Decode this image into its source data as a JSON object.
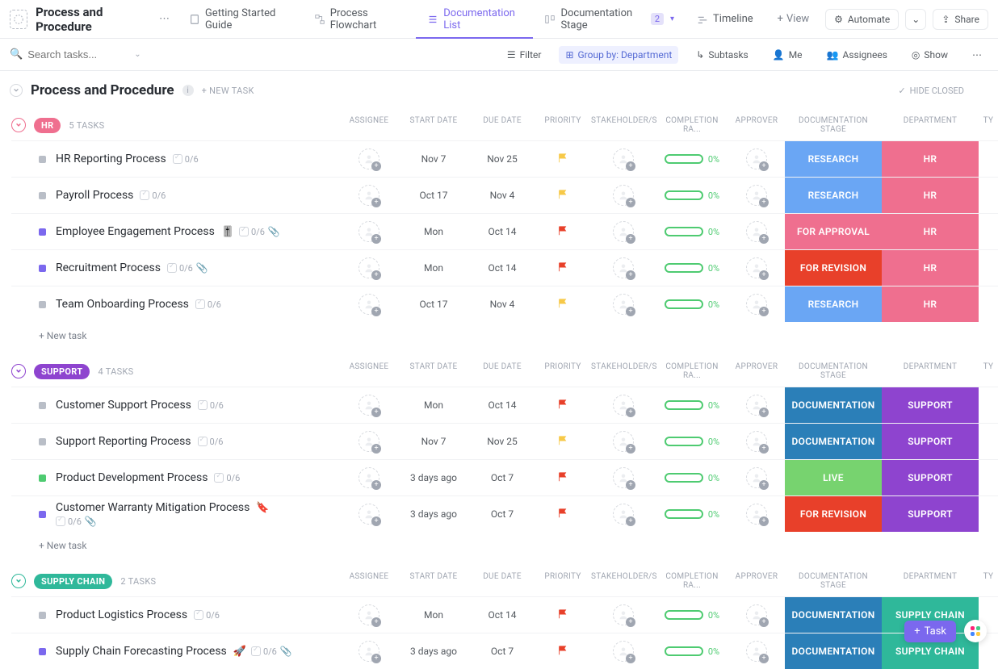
{
  "header": {
    "title": "Process and Procedure",
    "tabs": [
      {
        "label": "Getting Started Guide",
        "icon": "doc"
      },
      {
        "label": "Process Flowchart",
        "icon": "flow"
      },
      {
        "label": "Documentation List",
        "icon": "list",
        "active": true
      },
      {
        "label": "Documentation Stage",
        "icon": "board",
        "badge": "2",
        "chevron": true
      },
      {
        "label": "Timeline",
        "icon": "timeline"
      }
    ],
    "add_view_label": "View",
    "automate_label": "Automate",
    "share_label": "Share"
  },
  "toolbar": {
    "search_placeholder": "Search tasks...",
    "filter_label": "Filter",
    "groupby_label": "Group by: Department",
    "subtasks_label": "Subtasks",
    "me_label": "Me",
    "assignees_label": "Assignees",
    "show_label": "Show"
  },
  "list": {
    "title": "Process and Procedure",
    "new_task_label": "+ NEW TASK",
    "hide_closed_label": "HIDE CLOSED"
  },
  "columns": {
    "names": [
      "ASSIGNEE",
      "START DATE",
      "DUE DATE",
      "PRIORITY",
      "STAKEHOLDER/S",
      "COMPLETION RA...",
      "APPROVER",
      "DOCUMENTATION STAGE",
      "DEPARTMENT",
      "TY"
    ],
    "widths": [
      70,
      90,
      80,
      70,
      80,
      90,
      70,
      120,
      120,
      24
    ],
    "stage_colors": {
      "RESEARCH": "#6aa6f4",
      "FOR APPROVAL": "#ef6f8f",
      "FOR REVISION": "#e8402a",
      "DOCUMENTATION": "#2b7fb8",
      "LIVE": "#77d36f"
    },
    "dept_colors": {
      "HR": "#ef6f8f",
      "SUPPORT": "#8e44cf",
      "SUPPLY CHAIN": "#2fb89a"
    },
    "status_colors": {
      "gray": "#b9bec7",
      "purple": "#7b68ee",
      "green": "#4ecb71"
    },
    "priority_colors": {
      "yellow": "#f7c948",
      "red": "#e8402a"
    }
  },
  "groups": [
    {
      "name": "HR",
      "task_count": "5 TASKS",
      "chip_color": "#ef6f8f",
      "rows": [
        {
          "name": "HR Reporting Process",
          "status": "gray",
          "todo": "0/6",
          "start": "Nov 7",
          "due": "Nov 25",
          "priority": "yellow",
          "completion": "0%",
          "stage": "RESEARCH",
          "dept": "HR"
        },
        {
          "name": "Payroll Process",
          "status": "gray",
          "todo": "0/6",
          "start": "Oct 17",
          "due": "Nov 4",
          "priority": "yellow",
          "completion": "0%",
          "stage": "RESEARCH",
          "dept": "HR"
        },
        {
          "name": "Employee Engagement Process",
          "status": "purple",
          "todo": "0/6",
          "emoji": "🎚️",
          "clip": true,
          "start": "Mon",
          "due": "Oct 14",
          "priority": "red",
          "completion": "0%",
          "stage": "FOR APPROVAL",
          "dept": "HR"
        },
        {
          "name": "Recruitment Process",
          "status": "purple",
          "todo": "0/6",
          "clip": true,
          "start": "Mon",
          "due": "Oct 14",
          "priority": "red",
          "completion": "0%",
          "stage": "FOR REVISION",
          "dept": "HR"
        },
        {
          "name": "Team Onboarding Process",
          "status": "gray",
          "todo": "0/6",
          "start": "Oct 17",
          "due": "Nov 4",
          "priority": "yellow",
          "completion": "0%",
          "stage": "RESEARCH",
          "dept": "HR"
        }
      ]
    },
    {
      "name": "SUPPORT",
      "task_count": "4 TASKS",
      "chip_color": "#8e44cf",
      "rows": [
        {
          "name": "Customer Support Process",
          "status": "gray",
          "todo": "0/6",
          "start": "Mon",
          "due": "Oct 14",
          "priority": "red",
          "completion": "0%",
          "stage": "DOCUMENTATION",
          "dept": "SUPPORT"
        },
        {
          "name": "Support Reporting Process",
          "status": "gray",
          "todo": "0/6",
          "start": "Nov 7",
          "due": "Nov 25",
          "priority": "yellow",
          "completion": "0%",
          "stage": "DOCUMENTATION",
          "dept": "SUPPORT"
        },
        {
          "name": "Product Development Process",
          "status": "green",
          "todo": "0/6",
          "start": "3 days ago",
          "due": "Oct 7",
          "priority": "red",
          "completion": "0%",
          "stage": "LIVE",
          "dept": "SUPPORT"
        },
        {
          "name": "Customer Warranty Mitigation Process",
          "status": "purple",
          "emoji": "🔖",
          "todo": "0/6",
          "clip": true,
          "multiline": true,
          "start": "3 days ago",
          "due": "Oct 7",
          "priority": "red",
          "completion": "0%",
          "stage": "FOR REVISION",
          "dept": "SUPPORT"
        }
      ]
    },
    {
      "name": "SUPPLY CHAIN",
      "task_count": "2 TASKS",
      "chip_color": "#2fb89a",
      "rows": [
        {
          "name": "Product Logistics Process",
          "status": "gray",
          "todo": "0/6",
          "start": "Mon",
          "due": "Oct 14",
          "priority": "red",
          "completion": "0%",
          "stage": "DOCUMENTATION",
          "dept": "SUPPLY CHAIN"
        },
        {
          "name": "Supply Chain Forecasting Process",
          "status": "purple",
          "emoji": "🚀",
          "todo": "0/6",
          "clip": true,
          "start": "3 days ago",
          "due": "Oct 7",
          "priority": "red",
          "completion": "0%",
          "stage": "DOCUMENTATION",
          "dept": "SUPPLY CHAIN"
        }
      ]
    }
  ],
  "new_row_label": "+ New task",
  "float": {
    "task_label": "Task"
  }
}
